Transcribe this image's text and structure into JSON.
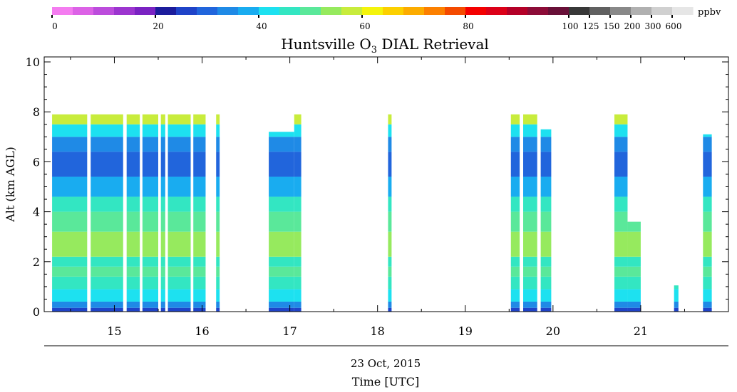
{
  "chart_data": {
    "type": "heatmap",
    "title_main": "Huntsville O",
    "title_sub": "3",
    "title_rest": " DIAL Retrieval",
    "ylabel": "Alt (km AGL)",
    "xlabel_date": "23 Oct, 2015",
    "xlabel": "Time [UTC]",
    "ylim": [
      0,
      10.2
    ],
    "xlim": [
      14.2,
      22.0
    ],
    "y_ticks": [
      "0",
      "2",
      "4",
      "6",
      "8",
      "10"
    ],
    "x_ticks": [
      "15",
      "16",
      "17",
      "18",
      "19",
      "20",
      "21"
    ],
    "colorbar": {
      "unit": "ppbv",
      "tick_labels": [
        "0",
        "20",
        "40",
        "60",
        "80",
        "100",
        "125",
        "150",
        "200",
        "300",
        "600"
      ],
      "colors": [
        "#f47cf0",
        "#dc62e6",
        "#bc4cdc",
        "#9c35cf",
        "#7a22c2",
        "#1c1c9c",
        "#1f43c8",
        "#2165dc",
        "#1f8ae6",
        "#19acf0",
        "#1de1f0",
        "#33e6c2",
        "#5ae89a",
        "#96ea5e",
        "#c8ec3c",
        "#f4f40c",
        "#fcd000",
        "#fcac00",
        "#fc8000",
        "#f44a00",
        "#f40000",
        "#dc0018",
        "#b40028",
        "#8c0c38",
        "#681038",
        "#383838",
        "#606060",
        "#888888",
        "#b0b0b0",
        "#d0d0d0",
        "#e6e6e6"
      ]
    },
    "profile_levels": [
      {
        "alt": [
          0.0,
          0.15
        ],
        "color": "#1f43c8"
      },
      {
        "alt": [
          0.15,
          0.4
        ],
        "color": "#1f8ae6"
      },
      {
        "alt": [
          0.4,
          0.9
        ],
        "color": "#1de1f0"
      },
      {
        "alt": [
          0.9,
          1.4
        ],
        "color": "#33e6c2"
      },
      {
        "alt": [
          1.4,
          1.8
        ],
        "color": "#5ae89a"
      },
      {
        "alt": [
          1.8,
          2.2
        ],
        "color": "#33e6c2"
      },
      {
        "alt": [
          2.2,
          3.2
        ],
        "color": "#96ea5e"
      },
      {
        "alt": [
          3.2,
          4.0
        ],
        "color": "#5ae89a"
      },
      {
        "alt": [
          4.0,
          4.6
        ],
        "color": "#33e6c2"
      },
      {
        "alt": [
          4.6,
          5.4
        ],
        "color": "#19acf0"
      },
      {
        "alt": [
          5.4,
          6.4
        ],
        "color": "#2165dc"
      },
      {
        "alt": [
          6.4,
          7.0
        ],
        "color": "#1f8ae6"
      },
      {
        "alt": [
          7.0,
          7.5
        ],
        "color": "#1de1f0"
      },
      {
        "alt": [
          7.5,
          7.9
        ],
        "color": "#c8ec3c"
      }
    ],
    "segments": [
      {
        "t0": 14.29,
        "t1": 14.69,
        "top": 7.9
      },
      {
        "t0": 14.73,
        "t1": 15.1,
        "top": 7.9
      },
      {
        "t0": 15.14,
        "t1": 15.29,
        "top": 7.9
      },
      {
        "t0": 15.32,
        "t1": 15.5,
        "top": 7.9
      },
      {
        "t0": 15.53,
        "t1": 15.58,
        "top": 7.9
      },
      {
        "t0": 15.61,
        "t1": 15.87,
        "top": 7.9
      },
      {
        "t0": 15.9,
        "t1": 16.04,
        "top": 7.9
      },
      {
        "t0": 16.16,
        "t1": 16.2,
        "top": 7.9
      },
      {
        "t0": 16.76,
        "t1": 17.05,
        "top": 7.2
      },
      {
        "t0": 17.05,
        "t1": 17.13,
        "top": 7.9
      },
      {
        "t0": 18.12,
        "t1": 18.16,
        "top": 7.9
      },
      {
        "t0": 19.52,
        "t1": 19.62,
        "top": 7.9
      },
      {
        "t0": 19.66,
        "t1": 19.82,
        "top": 7.9
      },
      {
        "t0": 19.86,
        "t1": 19.98,
        "top": 7.3
      },
      {
        "t0": 20.7,
        "t1": 20.85,
        "top": 7.9
      },
      {
        "t0": 20.85,
        "t1": 21.0,
        "top": 3.6
      },
      {
        "t0": 21.38,
        "t1": 21.43,
        "top": 1.05
      },
      {
        "t0": 21.71,
        "t1": 21.81,
        "top": 7.1
      }
    ]
  }
}
